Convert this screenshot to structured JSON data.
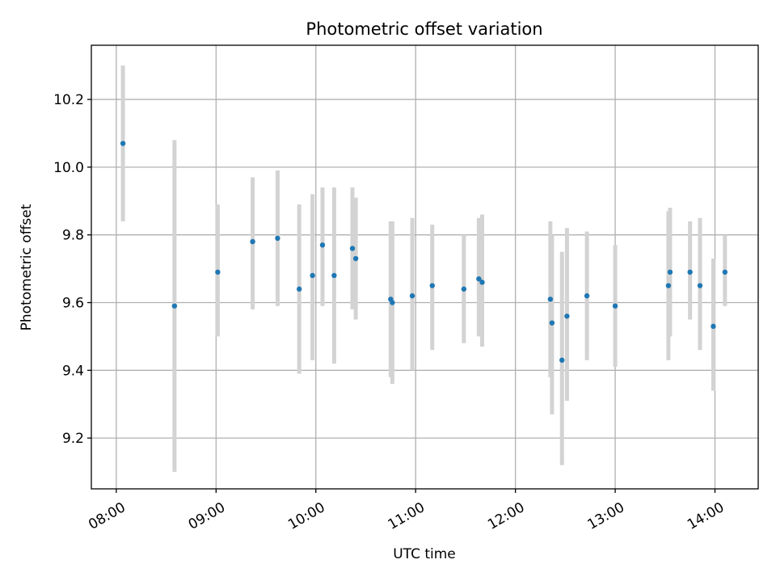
{
  "chart_data": {
    "type": "scatter",
    "title": "Photometric offset variation",
    "xlabel": "UTC time",
    "ylabel": "Photometric offset",
    "x_unit": "time of day (hours, UTC)",
    "xlim": [
      "07:45",
      "14:26"
    ],
    "ylim": [
      9.05,
      10.36
    ],
    "xticks": [
      {
        "label": "08:00",
        "value": "08:00"
      },
      {
        "label": "09:00",
        "value": "09:00"
      },
      {
        "label": "10:00",
        "value": "10:00"
      },
      {
        "label": "11:00",
        "value": "11:00"
      },
      {
        "label": "12:00",
        "value": "12:00"
      },
      {
        "label": "13:00",
        "value": "13:00"
      },
      {
        "label": "14:00",
        "value": "14:00"
      }
    ],
    "yticks": [
      {
        "label": "9.2",
        "value": 9.2
      },
      {
        "label": "9.4",
        "value": 9.4
      },
      {
        "label": "9.6",
        "value": 9.6
      },
      {
        "label": "9.8",
        "value": 9.8
      },
      {
        "label": "10.0",
        "value": 10.0
      },
      {
        "label": "10.2",
        "value": 10.2
      }
    ],
    "grid": true,
    "legend": "none",
    "colors": {
      "point": "#1f77b4",
      "errorbar": "#d3d3d3"
    },
    "points": [
      {
        "time": "08:04",
        "y": 10.07,
        "ylow": 9.84,
        "yhigh": 10.3
      },
      {
        "time": "08:35",
        "y": 9.59,
        "ylow": 9.1,
        "yhigh": 10.08
      },
      {
        "time": "09:01",
        "y": 9.69,
        "ylow": 9.5,
        "yhigh": 9.89
      },
      {
        "time": "09:22",
        "y": 9.78,
        "ylow": 9.58,
        "yhigh": 9.97
      },
      {
        "time": "09:37",
        "y": 9.79,
        "ylow": 9.59,
        "yhigh": 9.99
      },
      {
        "time": "09:50",
        "y": 9.64,
        "ylow": 9.39,
        "yhigh": 9.89
      },
      {
        "time": "09:58",
        "y": 9.68,
        "ylow": 9.43,
        "yhigh": 9.92
      },
      {
        "time": "10:04",
        "y": 9.77,
        "ylow": 9.59,
        "yhigh": 9.94
      },
      {
        "time": "10:11",
        "y": 9.68,
        "ylow": 9.42,
        "yhigh": 9.94
      },
      {
        "time": "10:22",
        "y": 9.76,
        "ylow": 9.58,
        "yhigh": 9.94
      },
      {
        "time": "10:24",
        "y": 9.73,
        "ylow": 9.55,
        "yhigh": 9.91
      },
      {
        "time": "10:45",
        "y": 9.61,
        "ylow": 9.38,
        "yhigh": 9.84
      },
      {
        "time": "10:46",
        "y": 9.6,
        "ylow": 9.36,
        "yhigh": 9.84
      },
      {
        "time": "10:58",
        "y": 9.62,
        "ylow": 9.4,
        "yhigh": 9.85
      },
      {
        "time": "11:10",
        "y": 9.65,
        "ylow": 9.46,
        "yhigh": 9.83
      },
      {
        "time": "11:29",
        "y": 9.64,
        "ylow": 9.48,
        "yhigh": 9.8
      },
      {
        "time": "11:38",
        "y": 9.67,
        "ylow": 9.5,
        "yhigh": 9.85
      },
      {
        "time": "11:40",
        "y": 9.66,
        "ylow": 9.47,
        "yhigh": 9.86
      },
      {
        "time": "12:21",
        "y": 9.61,
        "ylow": 9.38,
        "yhigh": 9.84
      },
      {
        "time": "12:22",
        "y": 9.54,
        "ylow": 9.27,
        "yhigh": 9.8
      },
      {
        "time": "12:28",
        "y": 9.43,
        "ylow": 9.12,
        "yhigh": 9.75
      },
      {
        "time": "12:31",
        "y": 9.56,
        "ylow": 9.31,
        "yhigh": 9.82
      },
      {
        "time": "12:43",
        "y": 9.62,
        "ylow": 9.43,
        "yhigh": 9.81
      },
      {
        "time": "13:00",
        "y": 9.59,
        "ylow": 9.41,
        "yhigh": 9.77
      },
      {
        "time": "13:32",
        "y": 9.65,
        "ylow": 9.43,
        "yhigh": 9.87
      },
      {
        "time": "13:33",
        "y": 9.69,
        "ylow": 9.5,
        "yhigh": 9.88
      },
      {
        "time": "13:45",
        "y": 9.69,
        "ylow": 9.55,
        "yhigh": 9.84
      },
      {
        "time": "13:51",
        "y": 9.65,
        "ylow": 9.46,
        "yhigh": 9.85
      },
      {
        "time": "13:59",
        "y": 9.53,
        "ylow": 9.34,
        "yhigh": 9.73
      },
      {
        "time": "14:06",
        "y": 9.69,
        "ylow": 9.59,
        "yhigh": 9.8
      }
    ]
  }
}
